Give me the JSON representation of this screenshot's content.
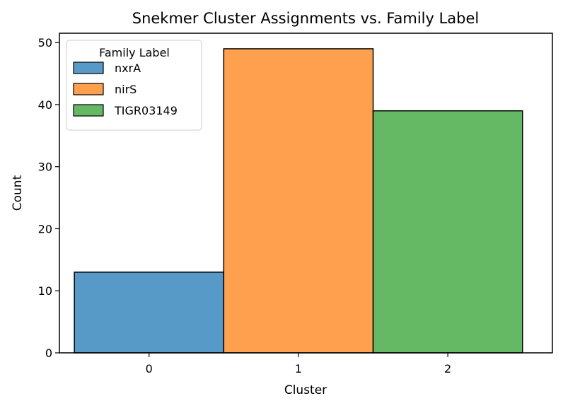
{
  "chart_data": {
    "type": "bar",
    "title": "Snekmer Cluster Assignments vs. Family Label",
    "xlabel": "Cluster",
    "ylabel": "Count",
    "categories": [
      "0",
      "1",
      "2"
    ],
    "x": [
      0,
      1,
      2
    ],
    "ylim": [
      0,
      51.5
    ],
    "yticks": [
      0,
      10,
      20,
      30,
      40,
      50
    ],
    "grid": false,
    "legend": {
      "title": "Family Label",
      "placement": "top-left"
    },
    "series": [
      {
        "name": "nxrA",
        "color": "#5799c7",
        "values": [
          13,
          0,
          0
        ]
      },
      {
        "name": "nirS",
        "color": "#ffa04e",
        "values": [
          0,
          49,
          0
        ]
      },
      {
        "name": "TIGR03149",
        "color": "#65b964",
        "values": [
          0,
          0,
          39
        ]
      }
    ]
  }
}
